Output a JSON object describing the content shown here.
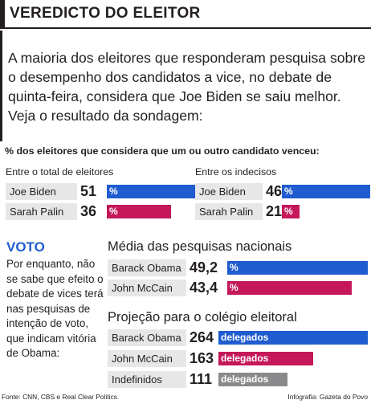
{
  "header": {
    "title": "VEREDICTO DO ELEITOR"
  },
  "intro": "A maioria dos eleitores que responderam pesquisa sobre o desempenho dos candidatos a vice, no debate de quinta-feira, considera que Joe Biden se saiu melhor. Veja o resultado da sondagem:",
  "colors": {
    "blue": "#1f5ccf",
    "red": "#c4185a",
    "gray": "#8a8a8c",
    "label_bg": "#e7e7e8"
  },
  "chart_data": [
    {
      "type": "bar",
      "title": "% dos eleitores que considera que um ou outro candidato venceu:",
      "subtitle": "Entre o total de eleitores",
      "unit": "%",
      "categories": [
        "Joe Biden",
        "Sarah Palin"
      ],
      "values": [
        51,
        36
      ],
      "display": [
        "51",
        "36"
      ]
    },
    {
      "type": "bar",
      "subtitle": "Entre os indecisos",
      "unit": "%",
      "categories": [
        "Joe Biden",
        "Sarah Palin"
      ],
      "values": [
        46,
        21
      ],
      "display": [
        "46",
        "21"
      ]
    },
    {
      "type": "bar",
      "title": "Média das pesquisas nacionais",
      "unit": "%",
      "categories": [
        "Barack Obama",
        "John McCain"
      ],
      "values": [
        49.2,
        43.4
      ],
      "display": [
        "49,2",
        "43,4"
      ]
    },
    {
      "type": "bar",
      "title": "Projeção para o colégio eleitoral",
      "unit": "delegados",
      "categories": [
        "Barack Obama",
        "John McCain",
        "Indefinidos"
      ],
      "values": [
        264,
        163,
        111
      ],
      "display": [
        "264",
        "163",
        "111"
      ]
    }
  ],
  "voto": {
    "title": "VOTO",
    "text": "Por enquanto, não se sabe que efeito o debate de vices terá nas pesquisas de intenção de voto, que indicam vitória de Obama:"
  },
  "footer": {
    "source": "Fonte: CNN, CBS e Real Clear Politics.",
    "credit": "Infografia: Gazeta do Povo"
  }
}
